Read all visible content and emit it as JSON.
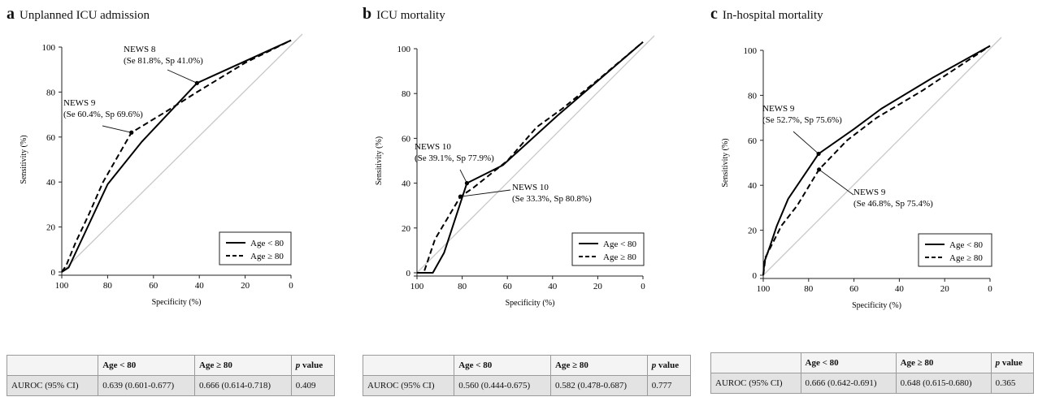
{
  "chart_data": [
    {
      "type": "line",
      "letter": "a",
      "title": "Unplanned ICU admission",
      "xlabel": "Specificity (%)",
      "ylabel": "Sensitivity (%)",
      "xlim": [
        100,
        0
      ],
      "ylim": [
        0,
        100
      ],
      "ticks": [
        100,
        80,
        60,
        40,
        20,
        0
      ],
      "diagonal": true,
      "legend_position": "bottom-right",
      "series": [
        {
          "name": "Age < 80",
          "style": "solid",
          "points": [
            [
              100,
              0
            ],
            [
              97,
              2
            ],
            [
              80,
              39
            ],
            [
              65,
              58
            ],
            [
              41,
              84
            ],
            [
              0,
              103
            ]
          ]
        },
        {
          "name": "Age ≥ 80",
          "style": "dashed",
          "points": [
            [
              100,
              0
            ],
            [
              98,
              3
            ],
            [
              94,
              13
            ],
            [
              88,
              26
            ],
            [
              82,
              40
            ],
            [
              69.6,
              62
            ],
            [
              55,
              71
            ],
            [
              41,
              80
            ],
            [
              20,
              93
            ],
            [
              0,
              103
            ]
          ]
        }
      ],
      "annotations": [
        {
          "title": "NEWS 8",
          "detail": "(Se 81.8%, Sp 41.0%)",
          "target": [
            41,
            84
          ]
        },
        {
          "title": "NEWS 9",
          "detail": "(Se 60.4%, Sp 69.6%)",
          "target": [
            69.6,
            62
          ]
        }
      ],
      "table": {
        "headers": [
          "",
          "Age < 80",
          "Age ≥ 80",
          "p value"
        ],
        "row": [
          "AUROC (95% CI)",
          "0.639 (0.601-0.677)",
          "0.666 (0.614-0.718)",
          "0.409"
        ]
      }
    },
    {
      "type": "line",
      "letter": "b",
      "title": "ICU mortality",
      "xlabel": "Specificity (%)",
      "ylabel": "Sensitivity (%)",
      "xlim": [
        100,
        0
      ],
      "ylim": [
        0,
        100
      ],
      "ticks": [
        100,
        80,
        60,
        40,
        20,
        0
      ],
      "diagonal": true,
      "legend_position": "bottom-right",
      "series": [
        {
          "name": "Age < 80",
          "style": "solid",
          "points": [
            [
              100,
              0
            ],
            [
              93,
              0
            ],
            [
              88,
              9
            ],
            [
              77.9,
              40
            ],
            [
              62,
              48
            ],
            [
              38,
              70
            ],
            [
              0,
              103
            ]
          ]
        },
        {
          "name": "Age ≥ 80",
          "style": "dashed",
          "points": [
            [
              100,
              0
            ],
            [
              97,
              0
            ],
            [
              92,
              15
            ],
            [
              80.8,
              34
            ],
            [
              75,
              38
            ],
            [
              60,
              50
            ],
            [
              47,
              65
            ],
            [
              36,
              73
            ],
            [
              20,
              86
            ],
            [
              0,
              103
            ]
          ]
        }
      ],
      "annotations": [
        {
          "title": "NEWS 10",
          "detail": "(Se 39.1%, Sp 77.9%)",
          "target": [
            77.9,
            40
          ]
        },
        {
          "title": "NEWS 10",
          "detail": "(Se 33.3%, Sp 80.8%)",
          "target": [
            80.8,
            34
          ]
        }
      ],
      "table": {
        "headers": [
          "",
          "Age < 80",
          "Age ≥ 80",
          "p value"
        ],
        "row": [
          "AUROC (95% CI)",
          "0.560 (0.444-0.675)",
          "0.582 (0.478-0.687)",
          "0.777"
        ]
      }
    },
    {
      "type": "line",
      "letter": "c",
      "title": "In-hospital mortality",
      "xlabel": "Specificity (%)",
      "ylabel": "Sensitivity (%)",
      "xlim": [
        100,
        0
      ],
      "ylim": [
        0,
        100
      ],
      "ticks": [
        100,
        80,
        60,
        40,
        20,
        0
      ],
      "diagonal": true,
      "legend_position": "bottom-right",
      "series": [
        {
          "name": "Age < 80",
          "style": "solid",
          "points": [
            [
              100,
              0
            ],
            [
              99.5,
              6
            ],
            [
              97,
              13
            ],
            [
              94,
              22
            ],
            [
              89,
              34
            ],
            [
              75.6,
              54
            ],
            [
              60,
              65
            ],
            [
              48,
              74
            ],
            [
              25,
              88
            ],
            [
              0,
              102
            ]
          ]
        },
        {
          "name": "Age ≥ 80",
          "style": "dashed",
          "points": [
            [
              100,
              0
            ],
            [
              99,
              8
            ],
            [
              96,
              14
            ],
            [
              92,
              22
            ],
            [
              85,
              31
            ],
            [
              75.4,
              47
            ],
            [
              63,
              60
            ],
            [
              50,
              70
            ],
            [
              30,
              82
            ],
            [
              0,
              102
            ]
          ]
        }
      ],
      "annotations": [
        {
          "title": "NEWS 9",
          "detail": "(Se 52.7%, Sp 75.6%)",
          "target": [
            75.6,
            54
          ]
        },
        {
          "title": "NEWS 9",
          "detail": "(Se 46.8%, Sp 75.4%)",
          "target": [
            75.4,
            47
          ]
        }
      ],
      "table": {
        "headers": [
          "",
          "Age < 80",
          "Age ≥ 80",
          "p value"
        ],
        "row": [
          "AUROC (95% CI)",
          "0.666 (0.642-0.691)",
          "0.648 (0.615-0.680)",
          "0.365"
        ]
      }
    }
  ]
}
